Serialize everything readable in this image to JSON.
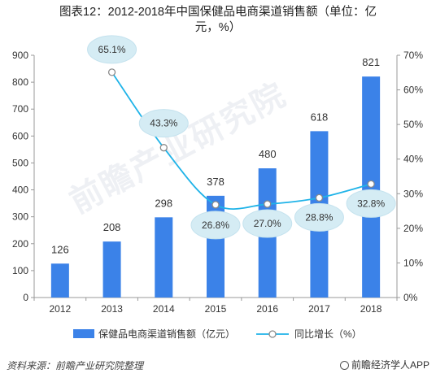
{
  "title_line1": "图表12：2012-2018年中国保健品电商渠道销售额（单位：亿",
  "title_line2": "元，%）",
  "source": "资料来源：前瞻产业研究院整理",
  "brand": "前瞻经济学人APP",
  "watermark": "前瞻产业研究院",
  "chart_data": {
    "type": "bar+line",
    "categories": [
      "2012",
      "2013",
      "2014",
      "2015",
      "2016",
      "2017",
      "2018"
    ],
    "series": [
      {
        "name": "保健品电商渠道销售额（亿元）",
        "type": "bar",
        "axis": "left",
        "values": [
          126,
          208,
          298,
          378,
          480,
          618,
          821
        ],
        "labels": [
          "126",
          "208",
          "298",
          "378",
          "480",
          "618",
          "821"
        ],
        "color": "#3b82e8"
      },
      {
        "name": "同比增长（%）",
        "type": "line",
        "axis": "right",
        "values": [
          null,
          65.1,
          43.3,
          26.8,
          27.0,
          28.8,
          32.8
        ],
        "labels": [
          "",
          "65.1%",
          "43.3%",
          "26.8%",
          "27.0%",
          "28.8%",
          "32.8%"
        ],
        "color": "#1fb3e8"
      }
    ],
    "y_left": {
      "min": 0,
      "max": 900,
      "ticks": [
        "0",
        "100",
        "200",
        "300",
        "400",
        "500",
        "600",
        "700",
        "800",
        "900"
      ]
    },
    "y_right": {
      "min": 0,
      "max": 70,
      "ticks": [
        "0%",
        "10%",
        "20%",
        "30%",
        "40%",
        "50%",
        "60%",
        "70%"
      ]
    },
    "grid": false,
    "legend_position": "bottom"
  }
}
